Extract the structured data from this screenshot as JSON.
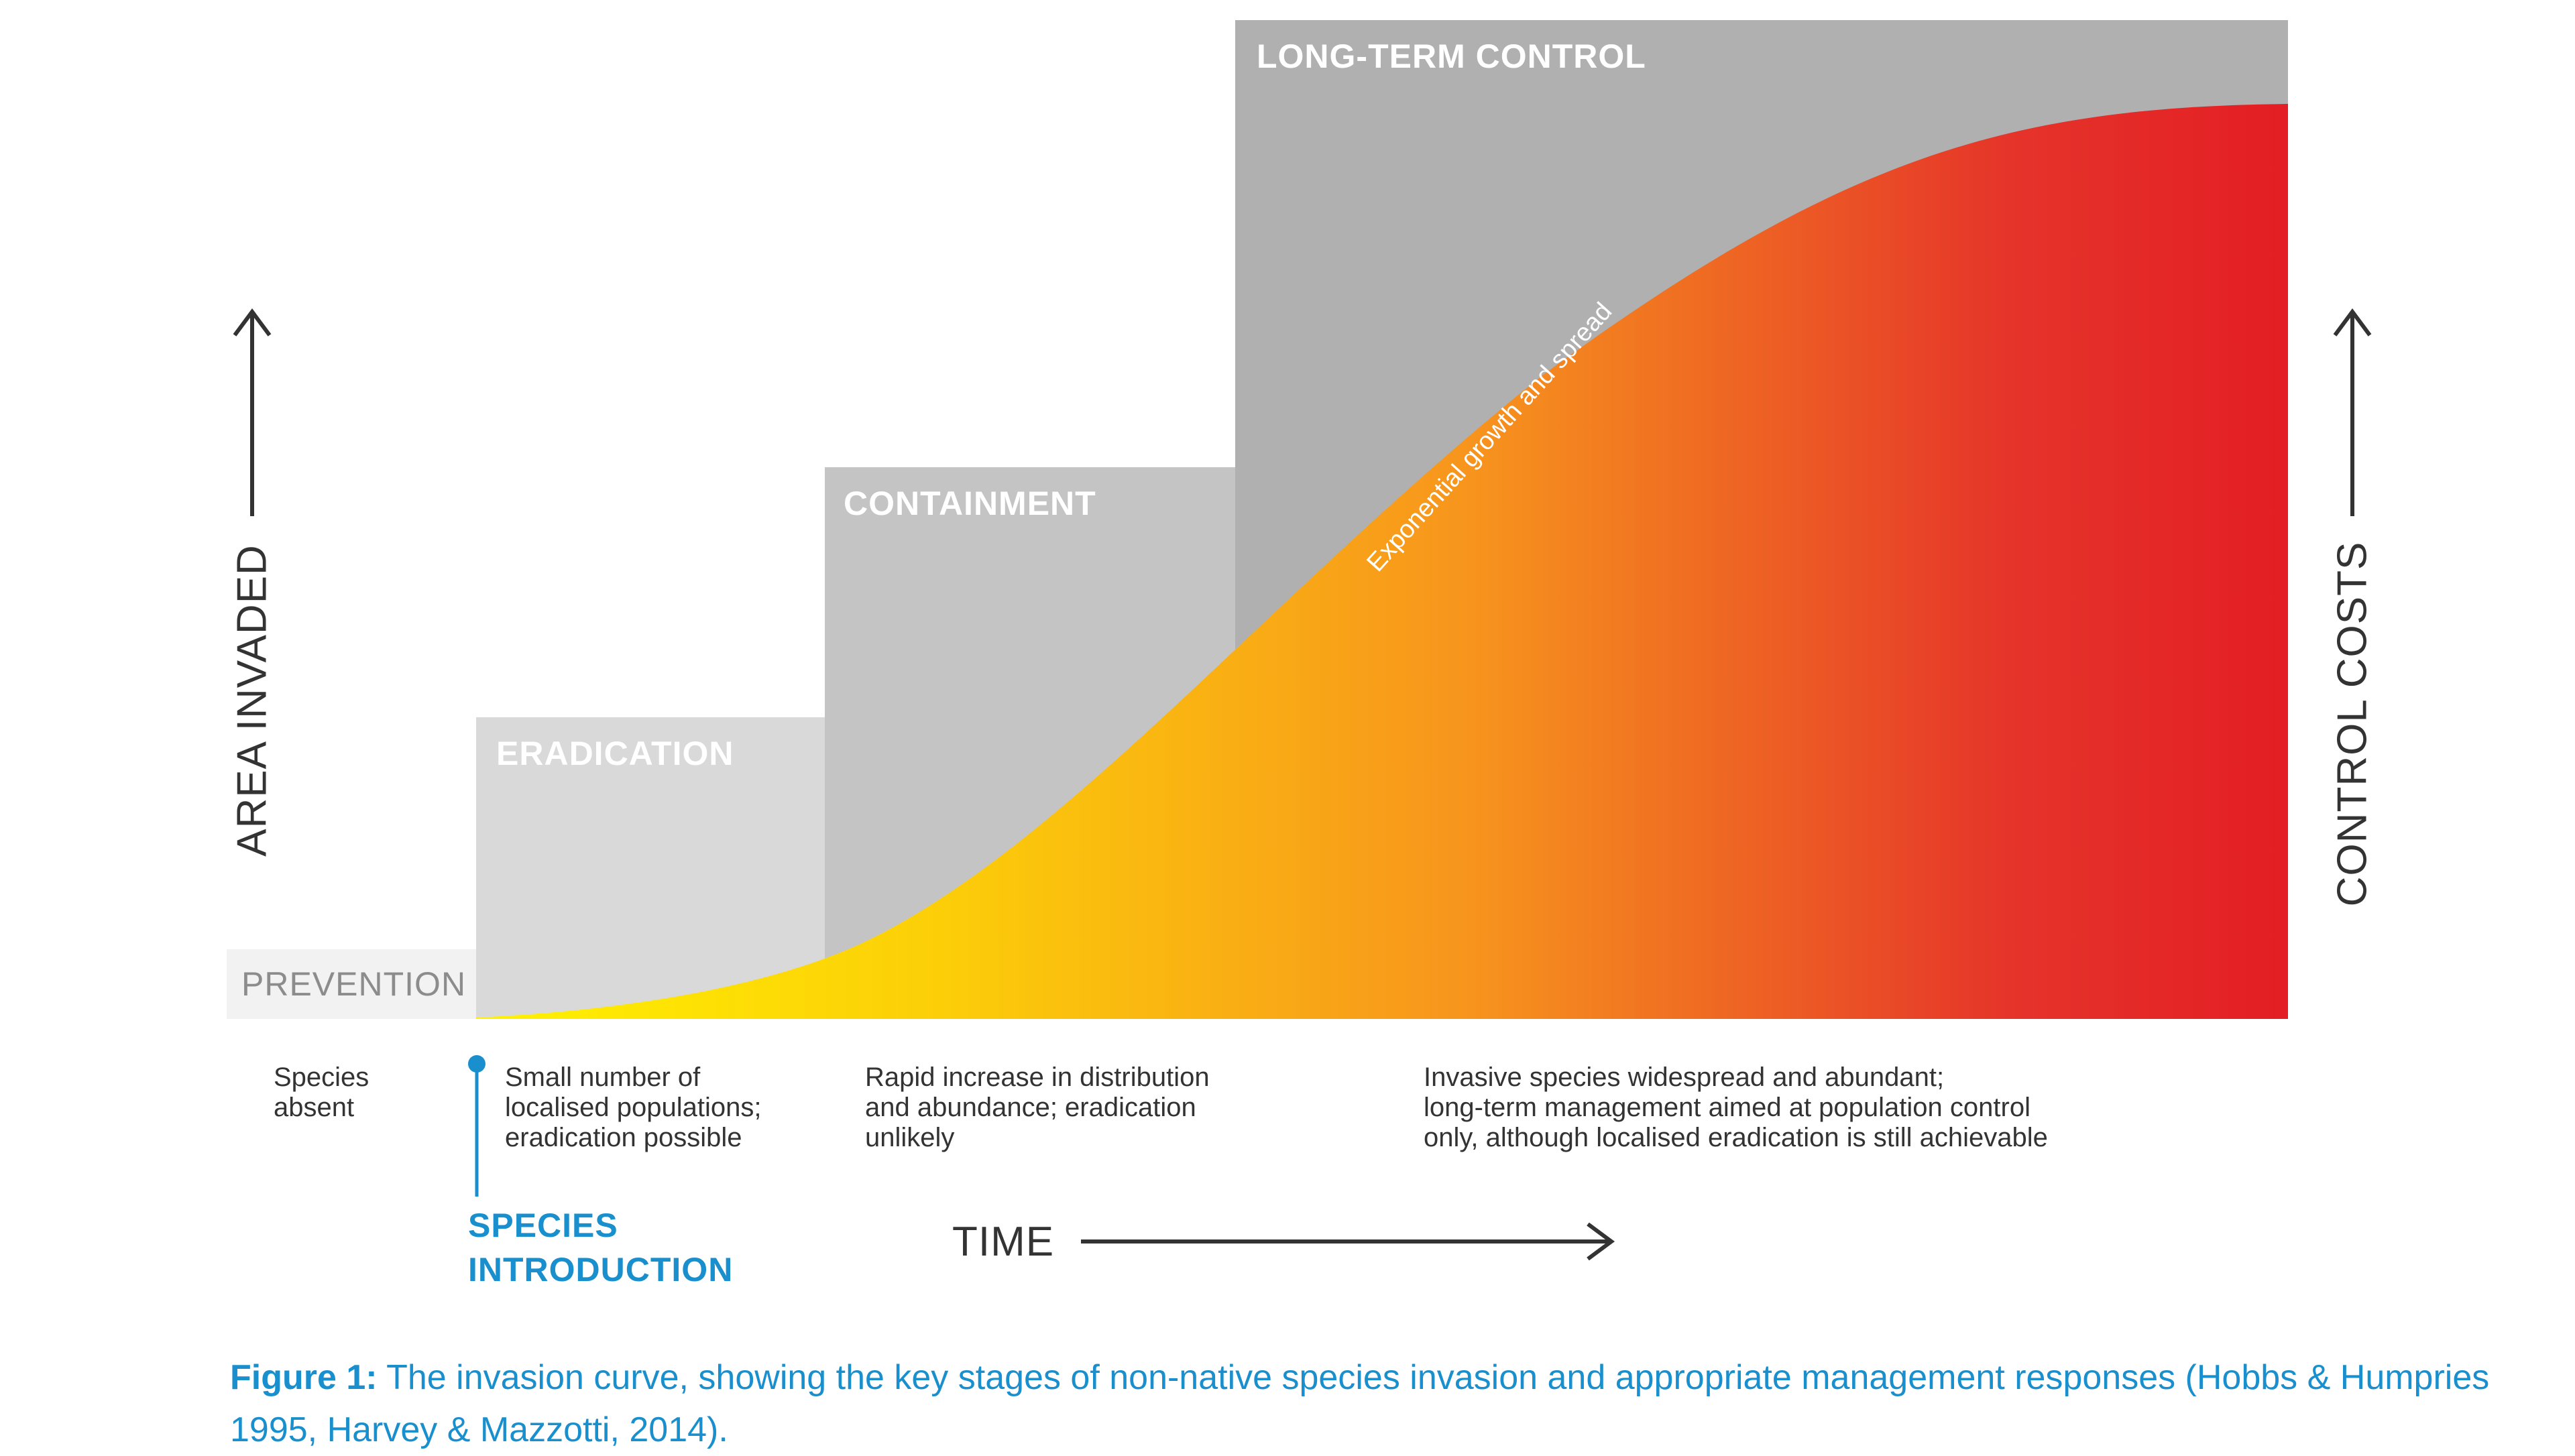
{
  "stages": [
    {
      "id": "prevention",
      "label": "PREVENTION",
      "color": "#f2f2f2",
      "text_color": "#8c8c8c"
    },
    {
      "id": "eradication",
      "label": "ERADICATION",
      "color": "#d9d9d9"
    },
    {
      "id": "containment",
      "label": "CONTAINMENT",
      "color": "#c4c4c4"
    },
    {
      "id": "long_term_control",
      "label": "LONG-TERM CONTROL",
      "color": "#b0b0b0"
    }
  ],
  "descriptions": [
    {
      "id": "species_absent",
      "text": "Species\nabsent"
    },
    {
      "id": "small_number",
      "text": "Small number of\nlocalised populations;\neradication possible"
    },
    {
      "id": "rapid_increase",
      "text": "Rapid increase in distribution\nand abundance; eradication\nunlikely"
    },
    {
      "id": "widespread",
      "text": "Invasive species widespread and abundant;\nlong-term management aimed at population control\nonly, although localised eradication is still achievable"
    }
  ],
  "curve_label": "Exponential growth and spread",
  "axes": {
    "left": "AREA INVADED",
    "right": "CONTROL COSTS",
    "bottom": "TIME"
  },
  "species_introduction": "SPECIES\nINTRODUCTION",
  "caption": {
    "prefix": "Figure 1:",
    "text": " The invasion curve, showing the key stages of non-native species invasion and appropriate management responses (Hobbs & Humpries 1995, Harvey & Mazzotti, 2014)."
  },
  "colors": {
    "curve_start": "#fff200",
    "curve_mid": "#f7941d",
    "curve_end": "#e31e24",
    "accent_blue": "#1a8fce",
    "text_dark": "#333333"
  }
}
